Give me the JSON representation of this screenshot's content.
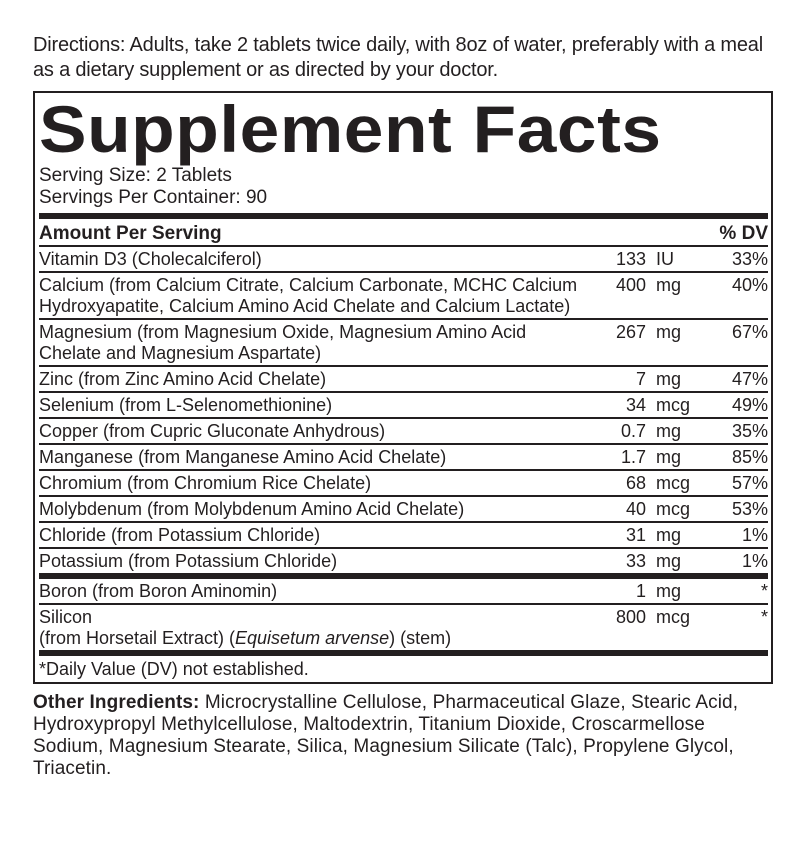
{
  "directions": "Directions: Adults, take 2 tablets twice daily, with 8oz of water, preferably with a meal as a dietary supplement or as directed by your doctor.",
  "title": "Supplement Facts",
  "serving_size": "Serving Size: 2 Tablets",
  "servings_per_container": "Servings Per Container: 90",
  "header": {
    "amount": "Amount Per Serving",
    "dv": "% DV"
  },
  "rows": [
    {
      "name": "Vitamin D3 (Cholecalciferol)",
      "amount": "133",
      "unit": "IU",
      "dv": "33%"
    },
    {
      "name": "Calcium (from Calcium Citrate, Calcium Carbonate, MCHC Calcium Hydroxyapatite, Calcium Amino Acid Chelate and Calcium Lactate)",
      "amount": "400",
      "unit": "mg",
      "dv": "40%"
    },
    {
      "name": "Magnesium (from Magnesium Oxide, Magnesium Amino Acid Chelate and Magnesium Aspartate)",
      "amount": "267",
      "unit": "mg",
      "dv": "67%"
    },
    {
      "name": "Zinc (from Zinc Amino Acid Chelate)",
      "amount": "7",
      "unit": "mg",
      "dv": "47%"
    },
    {
      "name": "Selenium (from L-Selenomethionine)",
      "amount": "34",
      "unit": "mcg",
      "dv": "49%"
    },
    {
      "name": "Copper (from Cupric Gluconate Anhydrous)",
      "amount": "0.7",
      "unit": "mg",
      "dv": "35%"
    },
    {
      "name": "Manganese (from Manganese Amino Acid Chelate)",
      "amount": "1.7",
      "unit": "mg",
      "dv": "85%"
    },
    {
      "name": "Chromium (from Chromium Rice Chelate)",
      "amount": "68",
      "unit": "mcg",
      "dv": "57%"
    },
    {
      "name": "Molybdenum (from Molybdenum Amino Acid Chelate)",
      "amount": "40",
      "unit": "mcg",
      "dv": "53%"
    },
    {
      "name": "Chloride (from Potassium Chloride)",
      "amount": "31",
      "unit": "mg",
      "dv": "1%"
    },
    {
      "name": "Potassium (from Potassium Chloride)",
      "amount": "33",
      "unit": "mg",
      "dv": "1%"
    },
    {
      "name": "Boron (from Boron Aminomin)",
      "amount": "1",
      "unit": "mg",
      "dv": "*"
    }
  ],
  "silicon": {
    "name": "Silicon",
    "source_pre": "(from Horsetail Extract) (",
    "source_latin": "Equisetum arvense",
    "source_post": ") (stem)",
    "amount": "800",
    "unit": "mcg",
    "dv": "*"
  },
  "footnote": "*Daily Value (DV) not established.",
  "other": {
    "label": "Other Ingredients:",
    "text": " Microcrystalline Cellulose, Pharmaceutical Glaze, Stearic Acid,  Hydroxypropyl Methylcellulose, Maltodextrin, Titanium Dioxide, Croscarmellose Sodium, Magnesium Stearate, Silica, Magnesium Silicate (Talc),  Propylene Glycol, Triacetin."
  }
}
